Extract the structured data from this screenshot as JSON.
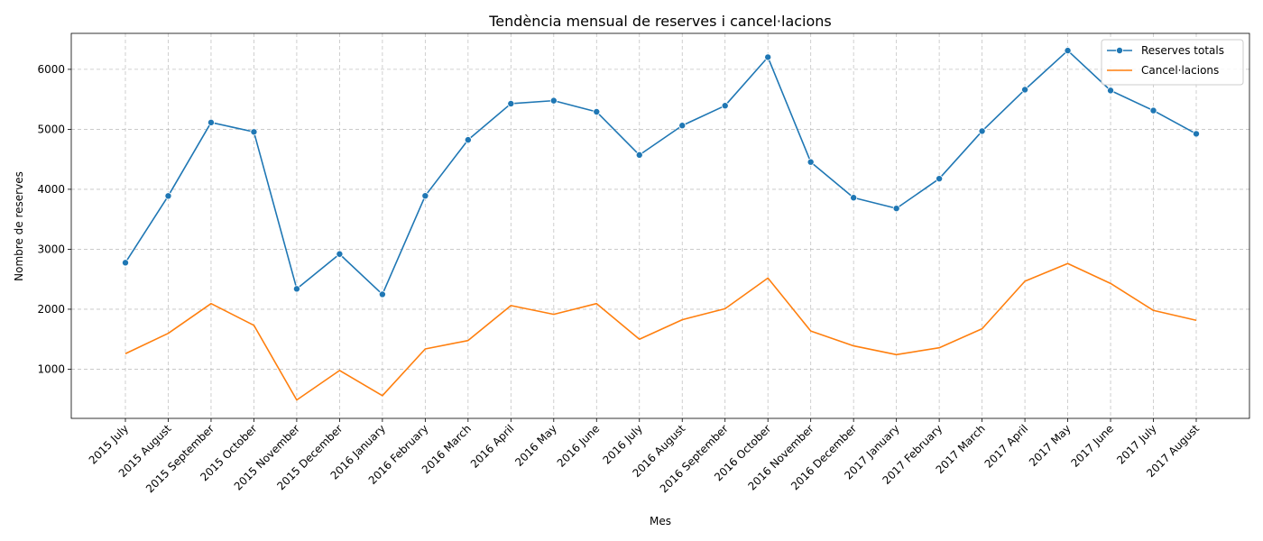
{
  "chart_data": {
    "type": "line",
    "title": "Tendència mensual de reserves i cancel·lacions",
    "xlabel": "Mes",
    "ylabel": "Nombre de reserves",
    "categories": [
      "2015 July",
      "2015 August",
      "2015 September",
      "2015 October",
      "2015 November",
      "2015 December",
      "2016 January",
      "2016 February",
      "2016 March",
      "2016 April",
      "2016 May",
      "2016 June",
      "2016 July",
      "2016 August",
      "2016 September",
      "2016 October",
      "2016 November",
      "2016 December",
      "2017 January",
      "2017 February",
      "2017 March",
      "2017 April",
      "2017 May",
      "2017 June",
      "2017 July",
      "2017 August"
    ],
    "series": [
      {
        "name": "Reserves totals",
        "color": "#1f77b4",
        "marker": "circle",
        "values": [
          2776,
          3889,
          5114,
          4957,
          2340,
          2920,
          2248,
          3891,
          4824,
          5428,
          5478,
          5292,
          4572,
          5063,
          5394,
          6203,
          4454,
          3860,
          3681,
          4177,
          4970,
          5661,
          6313,
          5647,
          5313,
          4925
        ]
      },
      {
        "name": "Cancel·lacions",
        "color": "#ff7f0e",
        "marker": "none",
        "values": [
          1259,
          1598,
          2094,
          1732,
          486,
          979,
          559,
          1338,
          1478,
          2061,
          1915,
          2094,
          1500,
          1825,
          2009,
          2520,
          1636,
          1389,
          1243,
          1357,
          1674,
          2467,
          2762,
          2430,
          1980,
          1815
        ]
      }
    ],
    "yticks": [
      1000,
      2000,
      3000,
      4000,
      5000,
      6000
    ],
    "ylim": [
      180,
      6600
    ],
    "grid": true,
    "legend_position": "top-right"
  }
}
